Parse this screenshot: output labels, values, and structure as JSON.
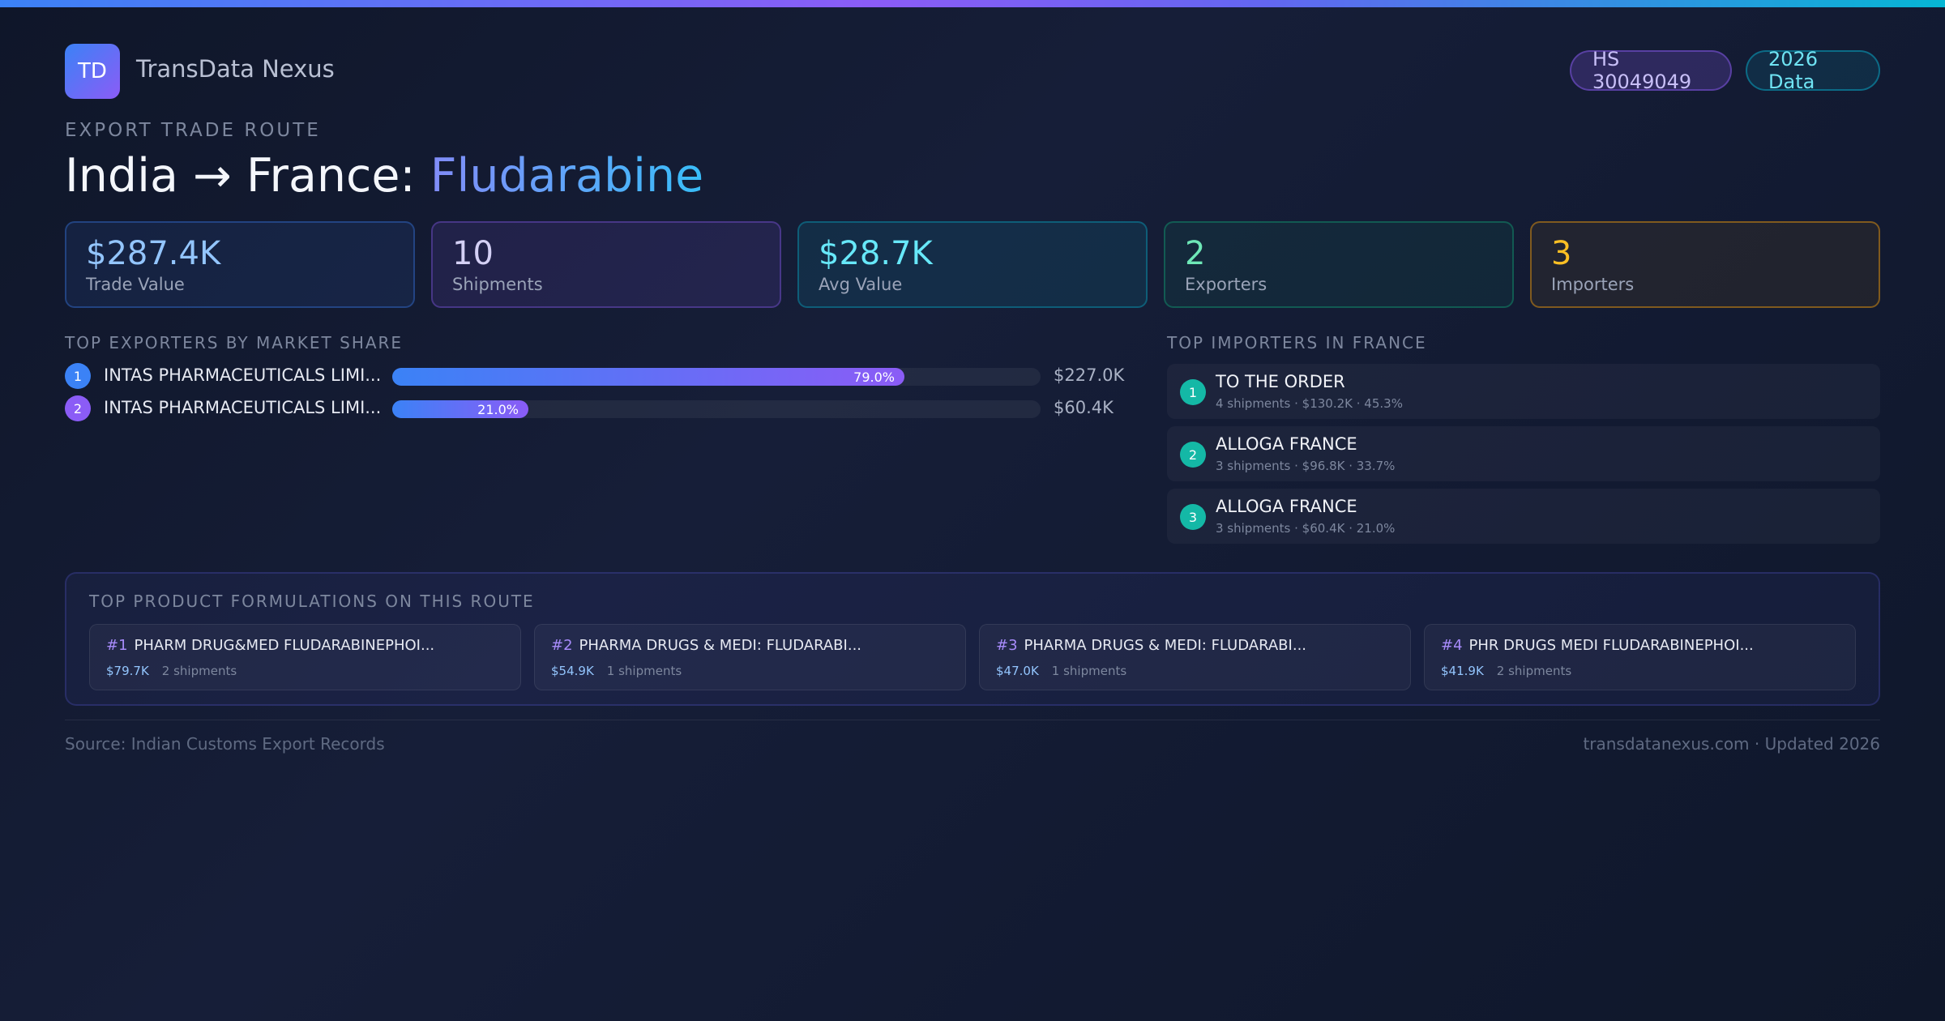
{
  "brand": {
    "logo_text": "TD",
    "name": "TransData Nexus"
  },
  "badges": {
    "hs_code": "HS 30049049",
    "year": "2026 Data"
  },
  "route": {
    "kicker": "EXPORT TRADE ROUTE",
    "title_prefix": "India → France: ",
    "product": "Fludarabine"
  },
  "stats": [
    {
      "value": "$287.4K",
      "label": "Trade Value"
    },
    {
      "value": "10",
      "label": "Shipments"
    },
    {
      "value": "$28.7K",
      "label": "Avg Value"
    },
    {
      "value": "2",
      "label": "Exporters"
    },
    {
      "value": "3",
      "label": "Importers"
    }
  ],
  "exporters": {
    "title": "TOP EXPORTERS BY MARKET SHARE",
    "items": [
      {
        "rank": "1",
        "name": "INTAS PHARMACEUTICALS LIMI...",
        "share": 79.0,
        "share_label": "79.0%",
        "value": "$227.0K",
        "color": "#3b82f6"
      },
      {
        "rank": "2",
        "name": "INTAS PHARMACEUTICALS LIMI...",
        "share": 21.0,
        "share_label": "21.0%",
        "value": "$60.4K",
        "color": "#8b5cf6"
      }
    ]
  },
  "importers": {
    "title": "TOP IMPORTERS IN FRANCE",
    "items": [
      {
        "rank": "1",
        "name": "TO THE ORDER",
        "meta": "4 shipments · $130.2K · 45.3%"
      },
      {
        "rank": "2",
        "name": "ALLOGA FRANCE",
        "meta": "3 shipments · $96.8K · 33.7%"
      },
      {
        "rank": "3",
        "name": "ALLOGA FRANCE",
        "meta": "3 shipments · $60.4K · 21.0%"
      }
    ]
  },
  "formulations": {
    "title": "TOP PRODUCT FORMULATIONS ON THIS ROUTE",
    "items": [
      {
        "num": "#1",
        "name": "PHARM DRUG&MED FLUDARABINEPHOI...",
        "value": "$79.7K",
        "shipments": "2 shipments"
      },
      {
        "num": "#2",
        "name": "PHARMA DRUGS & MEDI: FLUDARABI...",
        "value": "$54.9K",
        "shipments": "1 shipments"
      },
      {
        "num": "#3",
        "name": "PHARMA DRUGS & MEDI: FLUDARABI...",
        "value": "$47.0K",
        "shipments": "1 shipments"
      },
      {
        "num": "#4",
        "name": "PHR DRUGS MEDI FLUDARABINEPHOI...",
        "value": "$41.9K",
        "shipments": "2 shipments"
      }
    ]
  },
  "footer": {
    "source": "Source: Indian Customs Export Records",
    "site": "transdatanexus.com · Updated 2026"
  }
}
